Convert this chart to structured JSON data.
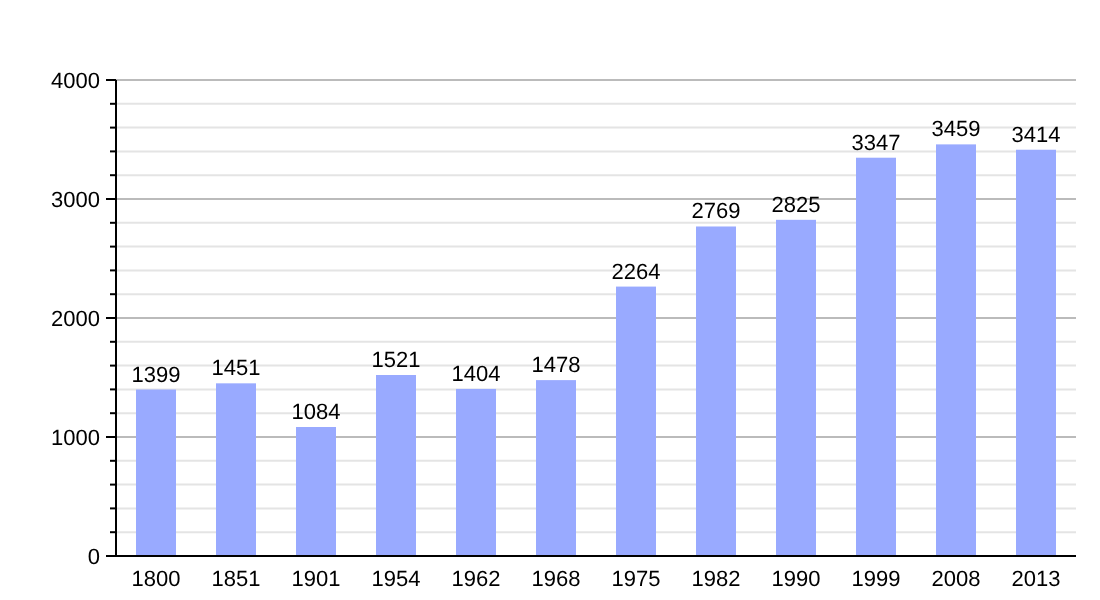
{
  "chart_data": {
    "type": "bar",
    "categories": [
      "1800",
      "1851",
      "1901",
      "1954",
      "1962",
      "1968",
      "1975",
      "1982",
      "1990",
      "1999",
      "2008",
      "2013"
    ],
    "values": [
      1399,
      1451,
      1084,
      1521,
      1404,
      1478,
      2264,
      2769,
      2825,
      3347,
      3459,
      3414
    ],
    "color": "#99aaff",
    "ylim": [
      0,
      4000
    ],
    "yticks": [
      0,
      {
        "value": 200,
        "label": null
      },
      {
        "value": 400,
        "label": null
      },
      {
        "value": 600,
        "label": null
      },
      {
        "value": 800,
        "label": null
      },
      1000,
      {
        "value": 1200,
        "label": null
      },
      {
        "value": 1400,
        "label": null
      },
      {
        "value": 1600,
        "label": null
      },
      {
        "value": 1800,
        "label": null
      },
      2000,
      {
        "value": 2200,
        "label": null
      },
      {
        "value": 2400,
        "label": null
      },
      {
        "value": 2600,
        "label": null
      },
      {
        "value": 2800,
        "label": null
      },
      3000,
      {
        "value": 3200,
        "label": null
      },
      {
        "value": 3400,
        "label": null
      },
      {
        "value": 3600,
        "label": null
      },
      {
        "value": 3800,
        "label": null
      },
      4000
    ],
    "grid": true,
    "data_labels": true
  }
}
